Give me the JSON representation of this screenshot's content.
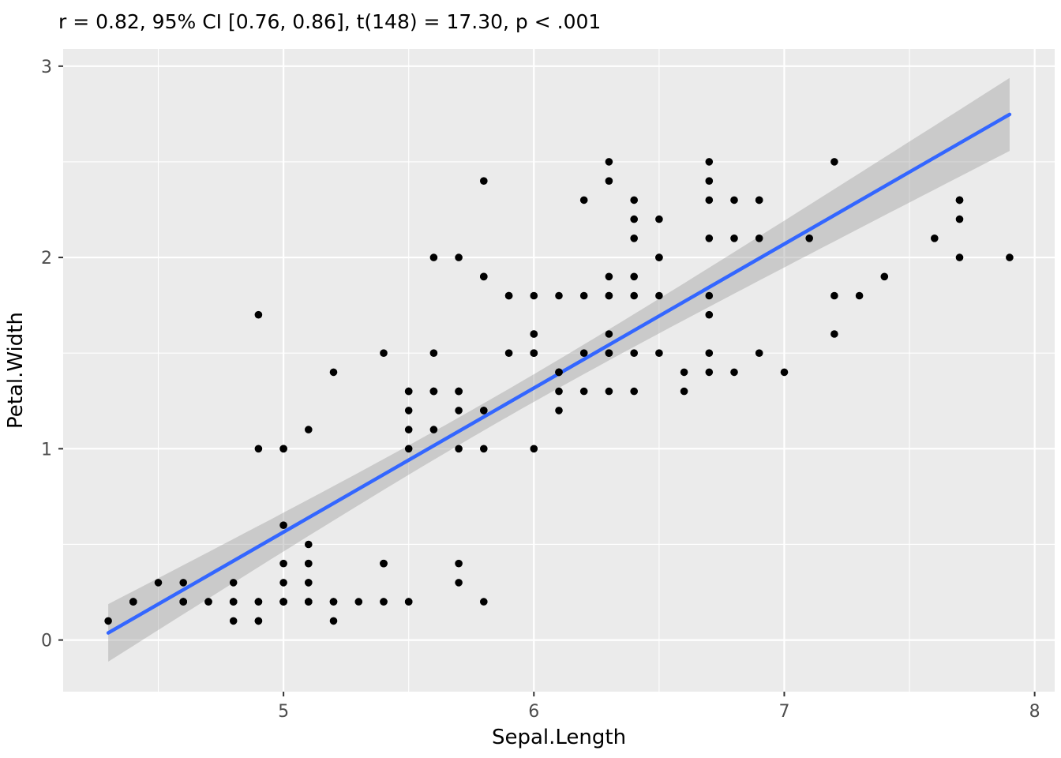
{
  "chart_data": {
    "type": "scatter",
    "title": "r = 0.82, 95% CI [0.76, 0.86], t(148) = 17.30, p < .001",
    "xlabel": "Sepal.Length",
    "ylabel": "Petal.Width",
    "x_ticks": [
      5,
      6,
      7,
      8
    ],
    "y_ticks": [
      0,
      1,
      2,
      3
    ],
    "x_minor_ticks": [
      4.5,
      5.5,
      6.5,
      7.5
    ],
    "y_minor_ticks": [
      0.5,
      1.5,
      2.5
    ],
    "xlim": [
      4.12,
      8.08
    ],
    "ylim": [
      -0.27,
      3.09
    ],
    "grid": "on",
    "legend": "none",
    "x": [
      5.1,
      4.9,
      4.7,
      4.6,
      5.0,
      5.4,
      4.6,
      5.0,
      4.4,
      4.9,
      5.4,
      4.8,
      4.8,
      4.3,
      5.8,
      5.7,
      5.4,
      5.1,
      5.7,
      5.1,
      5.4,
      5.1,
      4.6,
      5.1,
      4.8,
      5.0,
      5.0,
      5.2,
      5.2,
      4.7,
      4.8,
      5.4,
      5.2,
      5.5,
      4.9,
      5.0,
      5.5,
      4.9,
      4.4,
      5.1,
      5.0,
      4.5,
      4.4,
      5.0,
      5.1,
      4.8,
      5.1,
      4.6,
      5.3,
      5.0,
      7.0,
      6.4,
      6.9,
      5.5,
      6.5,
      5.7,
      6.3,
      4.9,
      6.6,
      5.2,
      5.0,
      5.9,
      6.0,
      6.1,
      5.6,
      6.7,
      5.6,
      5.8,
      6.2,
      5.6,
      5.9,
      6.1,
      6.3,
      6.1,
      6.4,
      6.6,
      6.8,
      6.7,
      6.0,
      5.7,
      5.5,
      5.5,
      5.8,
      6.0,
      5.4,
      6.0,
      6.7,
      6.3,
      5.6,
      5.5,
      5.5,
      6.1,
      5.8,
      5.0,
      5.6,
      5.7,
      5.7,
      6.2,
      5.1,
      5.7,
      6.3,
      5.8,
      7.1,
      6.3,
      6.5,
      7.6,
      4.9,
      7.3,
      6.7,
      7.2,
      6.5,
      6.4,
      6.8,
      5.7,
      5.8,
      6.4,
      6.5,
      7.7,
      7.7,
      6.0,
      6.9,
      5.6,
      7.7,
      6.3,
      6.7,
      7.2,
      6.2,
      6.1,
      6.4,
      7.2,
      7.4,
      7.9,
      6.4,
      6.3,
      6.1,
      7.7,
      6.3,
      6.4,
      6.0,
      6.9,
      6.7,
      6.9,
      5.8,
      6.8,
      6.7,
      6.7,
      6.3,
      6.5,
      6.2,
      5.9
    ],
    "y": [
      0.2,
      0.2,
      0.2,
      0.2,
      0.2,
      0.4,
      0.3,
      0.2,
      0.2,
      0.1,
      0.2,
      0.2,
      0.1,
      0.1,
      0.2,
      0.4,
      0.4,
      0.3,
      0.3,
      0.3,
      0.2,
      0.4,
      0.2,
      0.5,
      0.2,
      0.2,
      0.4,
      0.2,
      0.2,
      0.2,
      0.2,
      0.4,
      0.1,
      0.2,
      0.2,
      0.2,
      0.2,
      0.1,
      0.2,
      0.2,
      0.3,
      0.3,
      0.2,
      0.6,
      0.4,
      0.3,
      0.2,
      0.2,
      0.2,
      0.2,
      1.4,
      1.5,
      1.5,
      1.3,
      1.5,
      1.3,
      1.6,
      1.0,
      1.3,
      1.4,
      1.0,
      1.5,
      1.0,
      1.4,
      1.3,
      1.4,
      1.5,
      1.0,
      1.5,
      1.1,
      1.8,
      1.3,
      1.5,
      1.2,
      1.3,
      1.4,
      1.4,
      1.7,
      1.5,
      1.0,
      1.1,
      1.0,
      1.2,
      1.6,
      1.5,
      1.6,
      1.5,
      1.3,
      1.3,
      1.3,
      1.2,
      1.4,
      1.2,
      1.0,
      1.3,
      1.2,
      1.3,
      1.3,
      1.1,
      1.3,
      2.5,
      1.9,
      2.1,
      1.8,
      2.2,
      2.1,
      1.7,
      1.8,
      1.8,
      2.5,
      2.0,
      1.9,
      2.1,
      2.0,
      2.4,
      2.3,
      1.8,
      2.2,
      2.3,
      1.5,
      2.3,
      2.0,
      2.0,
      1.8,
      2.1,
      1.8,
      1.8,
      1.8,
      2.1,
      1.6,
      1.9,
      2.0,
      2.2,
      1.5,
      1.4,
      2.3,
      2.4,
      1.8,
      1.8,
      2.1,
      2.4,
      2.3,
      1.9,
      2.3,
      2.5,
      2.3,
      1.9,
      2.0,
      2.3,
      1.8
    ],
    "regression": {
      "slope": 0.7529,
      "intercept": -3.2002,
      "x_range": [
        4.3,
        7.9
      ],
      "n": 150,
      "mean_x": 5.8433,
      "sxx": 102.1683,
      "residual_se": 0.44,
      "t_crit": 1.976
    },
    "colors": {
      "point": "#000000",
      "line": "#3366FF",
      "band": "#999999",
      "panel": "#EBEBEB",
      "grid": "#FFFFFF",
      "tick_mark": "#333333",
      "tick_label": "#4D4D4D",
      "title": "#000000"
    }
  }
}
